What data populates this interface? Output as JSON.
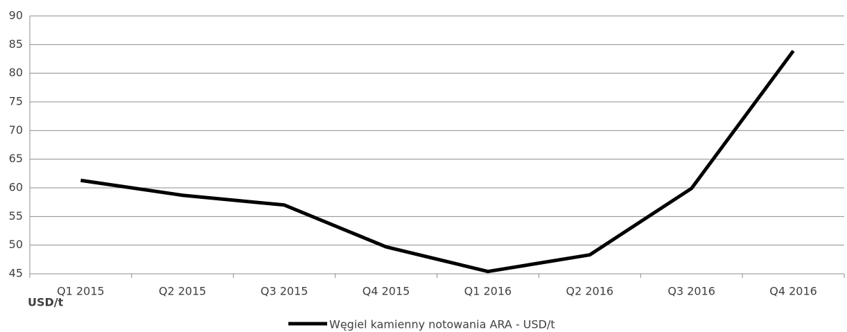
{
  "chart_data": {
    "type": "line",
    "categories": [
      "Q1 2015",
      "Q2 2015",
      "Q3 2015",
      "Q4 2015",
      "Q1 2016",
      "Q2 2016",
      "Q3 2016",
      "Q4 2016"
    ],
    "series": [
      {
        "name": "Węgiel kamienny notowania ARA - USD/t",
        "color": "#000000",
        "values": [
          61.3,
          58.7,
          57.0,
          49.7,
          45.4,
          48.3,
          59.9,
          83.9
        ]
      }
    ],
    "ylim": [
      45,
      90
    ],
    "yticks": [
      45,
      50,
      55,
      60,
      65,
      70,
      75,
      80,
      85,
      90
    ],
    "grid": true,
    "legend": "bottom",
    "annotations": [
      "USD/t"
    ]
  }
}
